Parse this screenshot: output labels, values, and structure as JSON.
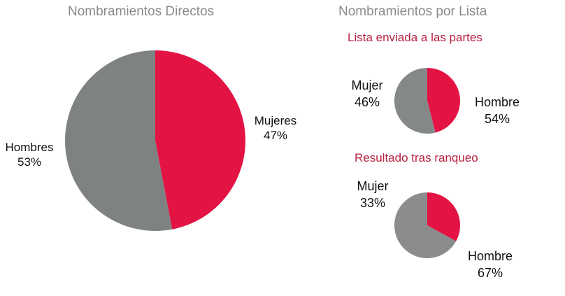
{
  "chart_data": [
    {
      "type": "pie",
      "title": "Nombramientos Directos",
      "slices": [
        {
          "label": "Mujeres",
          "value": 47,
          "value_label": "47%",
          "color": "#e31344"
        },
        {
          "label": "Hombres",
          "value": 53,
          "value_label": "53%",
          "color": "#7f8283"
        }
      ]
    },
    {
      "type": "pie",
      "title": "Nombramientos por Lista",
      "subtitle": "Lista enviada a las partes",
      "slices": [
        {
          "label": "Mujer",
          "value": 46,
          "value_label": "46%",
          "color": "#e31344"
        },
        {
          "label": "Hombre",
          "value": 54,
          "value_label": "54%",
          "color": "#858889"
        }
      ]
    },
    {
      "type": "pie",
      "title": "Nombramientos por Lista",
      "subtitle": "Resultado tras ranqueo",
      "slices": [
        {
          "label": "Mujer",
          "value": 33,
          "value_label": "33%",
          "color": "#e31344"
        },
        {
          "label": "Hombre",
          "value": 67,
          "value_label": "67%",
          "color": "#8b8c8e"
        }
      ]
    }
  ]
}
